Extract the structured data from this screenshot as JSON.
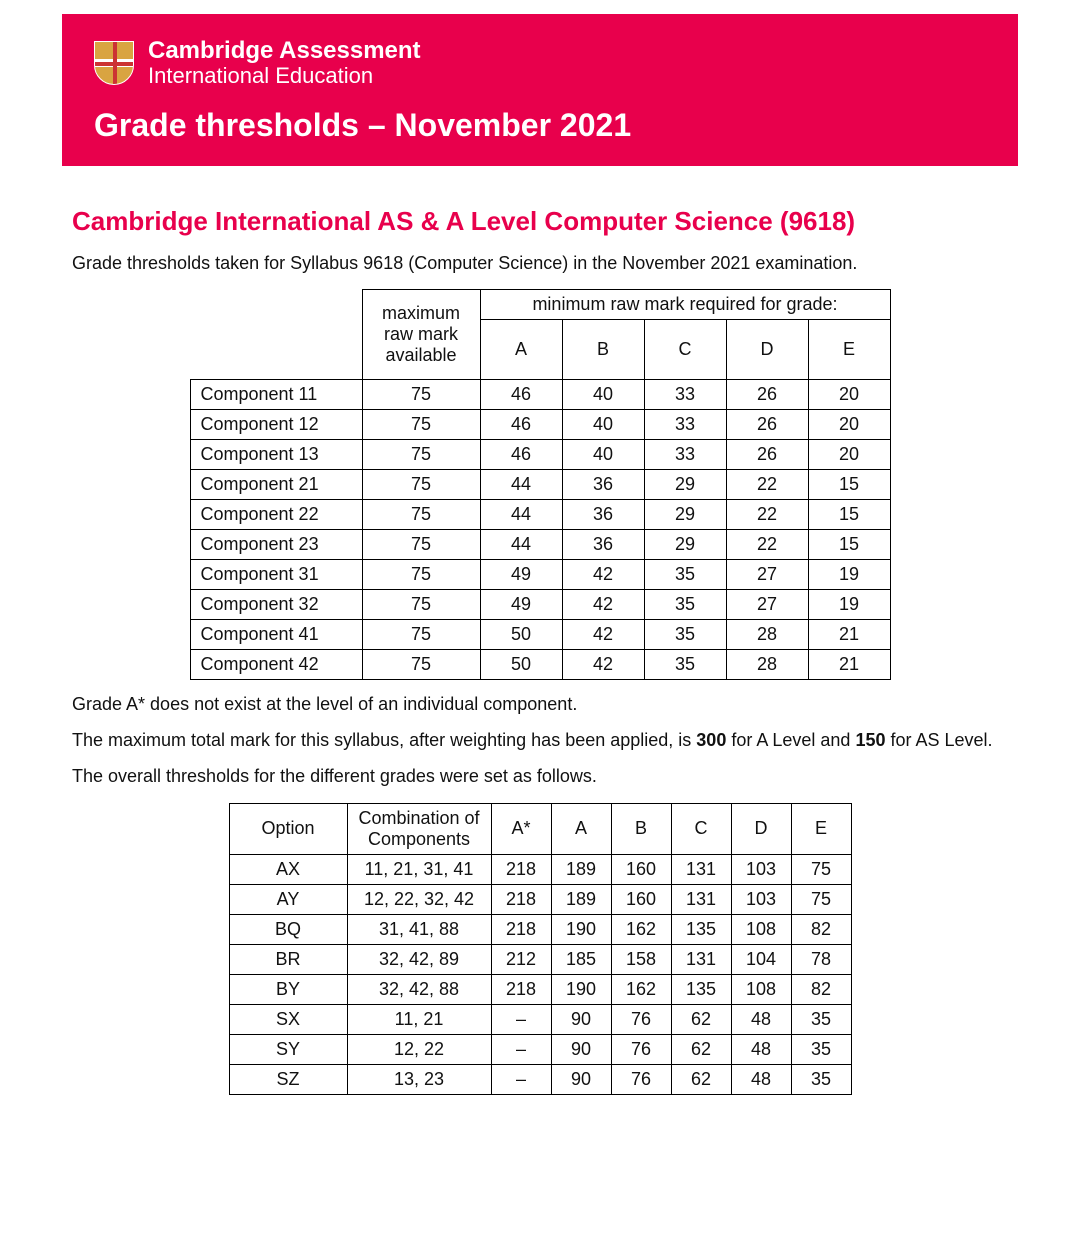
{
  "header": {
    "brand_line1": "Cambridge Assessment",
    "brand_line2": "International Education",
    "title": "Grade thresholds – November 2021"
  },
  "subject_title": "Cambridge International AS & A Level Computer Science (9618)",
  "intro_text": "Grade thresholds taken for Syllabus 9618 (Computer Science) in the November 2021 examination.",
  "components_table": {
    "super_header": "minimum raw mark required for grade:",
    "max_label": "maximum raw mark available",
    "grade_headers": [
      "A",
      "B",
      "C",
      "D",
      "E"
    ],
    "rows": [
      {
        "name": "Component 11",
        "max": "75",
        "marks": [
          "46",
          "40",
          "33",
          "26",
          "20"
        ]
      },
      {
        "name": "Component 12",
        "max": "75",
        "marks": [
          "46",
          "40",
          "33",
          "26",
          "20"
        ]
      },
      {
        "name": "Component 13",
        "max": "75",
        "marks": [
          "46",
          "40",
          "33",
          "26",
          "20"
        ]
      },
      {
        "name": "Component 21",
        "max": "75",
        "marks": [
          "44",
          "36",
          "29",
          "22",
          "15"
        ]
      },
      {
        "name": "Component 22",
        "max": "75",
        "marks": [
          "44",
          "36",
          "29",
          "22",
          "15"
        ]
      },
      {
        "name": "Component 23",
        "max": "75",
        "marks": [
          "44",
          "36",
          "29",
          "22",
          "15"
        ]
      },
      {
        "name": "Component 31",
        "max": "75",
        "marks": [
          "49",
          "42",
          "35",
          "27",
          "19"
        ]
      },
      {
        "name": "Component 32",
        "max": "75",
        "marks": [
          "49",
          "42",
          "35",
          "27",
          "19"
        ]
      },
      {
        "name": "Component 41",
        "max": "75",
        "marks": [
          "50",
          "42",
          "35",
          "28",
          "21"
        ]
      },
      {
        "name": "Component 42",
        "max": "75",
        "marks": [
          "50",
          "42",
          "35",
          "28",
          "21"
        ]
      }
    ]
  },
  "note1": "Grade A* does not exist at the level of an individual component.",
  "note2_pre": "The maximum total mark for this syllabus, after weighting has been applied, is ",
  "note2_b1": "300",
  "note2_mid": " for A Level and ",
  "note2_b2": "150",
  "note2_post": " for AS Level.",
  "note3": "The overall thresholds for the different grades were set as follows.",
  "options_table": {
    "headers": [
      "Option",
      "Combination of Components",
      "A*",
      "A",
      "B",
      "C",
      "D",
      "E"
    ],
    "rows": [
      {
        "option": "AX",
        "comb": "11, 21, 31, 41",
        "marks": [
          "218",
          "189",
          "160",
          "131",
          "103",
          "75"
        ]
      },
      {
        "option": "AY",
        "comb": "12, 22, 32, 42",
        "marks": [
          "218",
          "189",
          "160",
          "131",
          "103",
          "75"
        ]
      },
      {
        "option": "BQ",
        "comb": "31, 41, 88",
        "marks": [
          "218",
          "190",
          "162",
          "135",
          "108",
          "82"
        ]
      },
      {
        "option": "BR",
        "comb": "32, 42, 89",
        "marks": [
          "212",
          "185",
          "158",
          "131",
          "104",
          "78"
        ]
      },
      {
        "option": "BY",
        "comb": "32, 42, 88",
        "marks": [
          "218",
          "190",
          "162",
          "135",
          "108",
          "82"
        ]
      },
      {
        "option": "SX",
        "comb": "11, 21",
        "marks": [
          "–",
          "90",
          "76",
          "62",
          "48",
          "35"
        ]
      },
      {
        "option": "SY",
        "comb": "12, 22",
        "marks": [
          "–",
          "90",
          "76",
          "62",
          "48",
          "35"
        ]
      },
      {
        "option": "SZ",
        "comb": "13, 23",
        "marks": [
          "–",
          "90",
          "76",
          "62",
          "48",
          "35"
        ]
      }
    ]
  }
}
